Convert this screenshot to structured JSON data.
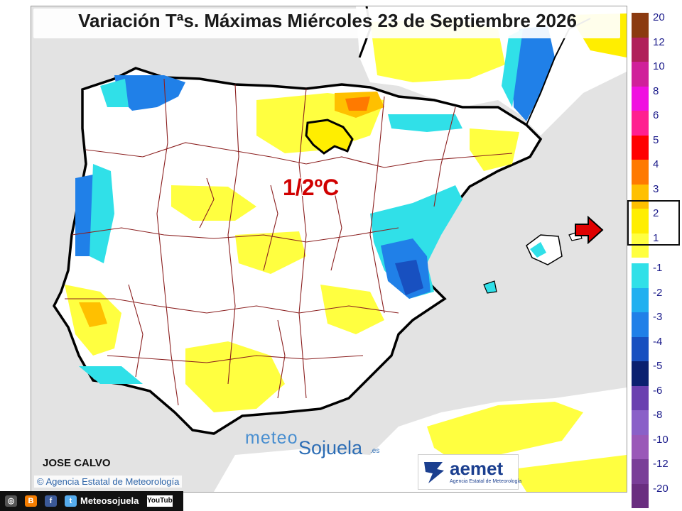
{
  "map": {
    "title": "Variación Tªs. Máximas Miércoles 23 de Septiembre 2026",
    "center_value": "1/2ºC",
    "author": "JOSE CALVO",
    "copyright": "Agencia Estatal de Meteorología",
    "watermark": {
      "part1": "meteo",
      "part2": "Sojuela",
      "part3": ".es"
    },
    "aemet": {
      "name": "aemet",
      "subtitle": "Agencia Estatal de Meteorología"
    },
    "highlighted_range": "1/2"
  },
  "legend": {
    "items": [
      {
        "label": "20",
        "color": "#8B3A10"
      },
      {
        "label": "12",
        "color": "#B0205A"
      },
      {
        "label": "10",
        "color": "#D0209A"
      },
      {
        "label": "8",
        "color": "#F010E0"
      },
      {
        "label": "6",
        "color": "#FF2090"
      },
      {
        "label": "5",
        "color": "#FF0000"
      },
      {
        "label": "4",
        "color": "#FF7A00"
      },
      {
        "label": "3",
        "color": "#FFC000"
      },
      {
        "label": "2",
        "color": "#FFEE00"
      },
      {
        "label": "1",
        "color": "#FFFF40"
      },
      {
        "label": "-1",
        "color": "#30E0E8"
      },
      {
        "label": "-2",
        "color": "#20B0F0"
      },
      {
        "label": "-3",
        "color": "#2080E8"
      },
      {
        "label": "-4",
        "color": "#1850C0"
      },
      {
        "label": "-5",
        "color": "#0A2070"
      },
      {
        "label": "-6",
        "color": "#6A40B0"
      },
      {
        "label": "-8",
        "color": "#8A60C8"
      },
      {
        "label": "-10",
        "color": "#9A58B8"
      },
      {
        "label": "-12",
        "color": "#7A3E98"
      },
      {
        "label": "-20",
        "color": "#6A2E80"
      }
    ]
  },
  "social_bar": {
    "name": "Meteosojuela",
    "youtube": "YouTube"
  },
  "colors": {
    "sea": "#e3e3e3",
    "land": "#ffffff",
    "yellow": "#FFFF40",
    "cyan": "#30E0E8",
    "blue": "#2080E8",
    "borders": "#8b2020",
    "coast": "#000000"
  }
}
